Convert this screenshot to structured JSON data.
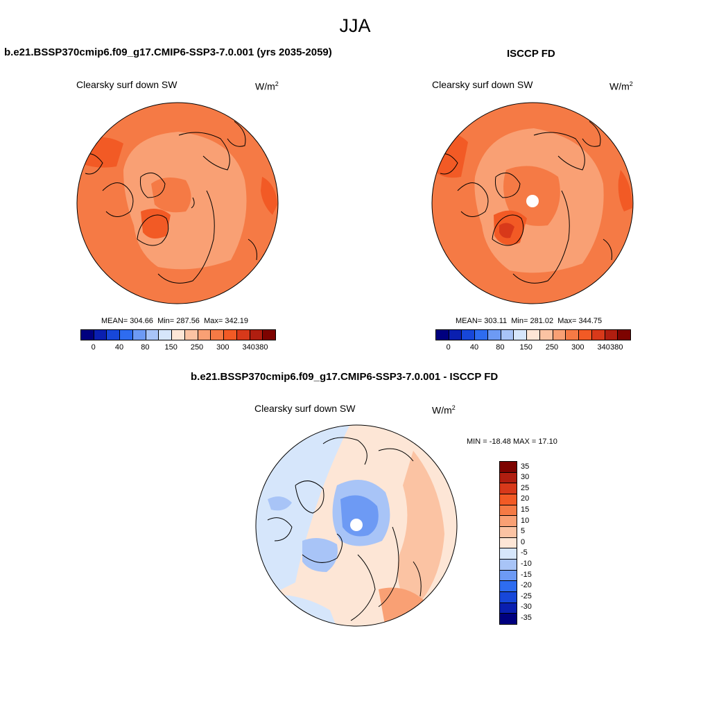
{
  "season": "JJA",
  "panel_left": {
    "title": "b.e21.BSSP370cmip6.f09_g17.CMIP6-SSP3-7.0.001 (yrs 2035-2059)",
    "subtitle": "Clearsky surf down SW",
    "units": "W/m",
    "units_sup": "2",
    "mean_label": "MEAN=",
    "mean": "304.66",
    "min_label": "Min=",
    "min": "287.56",
    "max_label": "Max=",
    "max": "342.19",
    "pole_hole": false
  },
  "panel_right": {
    "title": "ISCCP FD",
    "subtitle": "Clearsky surf down SW",
    "units": "W/m",
    "units_sup": "2",
    "mean_label": "MEAN=",
    "mean": "303.11",
    "min_label": "Min=",
    "min": "281.02",
    "max_label": "Max=",
    "max": "344.75",
    "pole_hole": true
  },
  "panel_diff": {
    "title": "b.e21.BSSP370cmip6.f09_g17.CMIP6-SSP3-7.0.001 - ISCCP FD",
    "subtitle": "Clearsky surf down SW",
    "units": "W/m",
    "units_sup": "2",
    "minmax_text": "MIN = -18.48 MAX =  17.10"
  },
  "abs_colorbar": {
    "colors": [
      "#00007f",
      "#0a1fb0",
      "#1747d9",
      "#2e6cf0",
      "#6d9af4",
      "#a8c4f7",
      "#d6e6fb",
      "#fde6d6",
      "#fbc3a3",
      "#f9a074",
      "#f57a45",
      "#f25a25",
      "#d8391a",
      "#b01e10",
      "#7d0300"
    ],
    "tick_labels": [
      "0",
      "40",
      "80",
      "150",
      "250",
      "300",
      "340",
      "380"
    ]
  },
  "diff_colorbar": {
    "colors": [
      "#7d0300",
      "#b01e10",
      "#d8391a",
      "#f25a25",
      "#f57a45",
      "#f9a074",
      "#fbc3a3",
      "#fde6d6",
      "#d6e6fb",
      "#a8c4f7",
      "#6d9af4",
      "#2e6cf0",
      "#1747d9",
      "#0a1fb0",
      "#00007f"
    ],
    "tick_labels": [
      "35",
      "30",
      "25",
      "20",
      "15",
      "10",
      "5",
      "0",
      "-5",
      "-10",
      "-15",
      "-20",
      "-25",
      "-30",
      "-35"
    ]
  }
}
